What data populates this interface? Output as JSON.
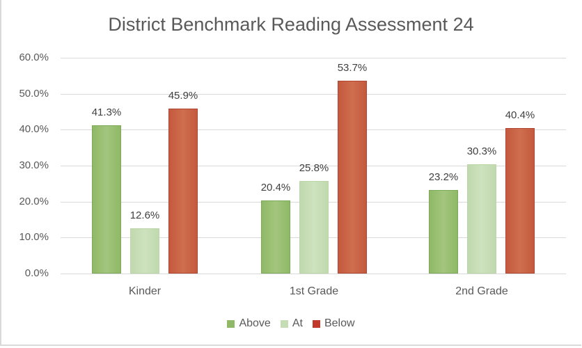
{
  "chart_data": {
    "type": "bar",
    "title": "District Benchmark Reading Assessment 24",
    "xlabel": "",
    "ylabel": "",
    "categories": [
      "Kinder",
      "1st Grade",
      "2nd Grade"
    ],
    "series": [
      {
        "name": "Above",
        "color": "#9bbf72",
        "values": [
          41.3,
          20.4,
          23.2
        ],
        "labels": [
          "41.3%",
          "20.4%",
          "23.2%"
        ]
      },
      {
        "name": "At",
        "color": "#c5dcb4",
        "values": [
          12.6,
          25.8,
          30.3
        ],
        "labels": [
          "12.6%",
          "25.8%",
          "30.3%"
        ]
      },
      {
        "name": "Below",
        "color": "#c9694a",
        "values": [
          45.9,
          53.7,
          40.4
        ],
        "labels": [
          "45.9%",
          "53.7%",
          "40.4%"
        ]
      }
    ],
    "ylim": [
      0,
      60
    ],
    "yticks": [
      "0.0%",
      "10.0%",
      "20.0%",
      "30.0%",
      "40.0%",
      "50.0%",
      "60.0%"
    ],
    "grid": true,
    "legend_position": "bottom"
  },
  "legend": {
    "items": [
      {
        "label": "Above",
        "color": "#8fb966"
      },
      {
        "label": "At",
        "color": "#c5dcb4"
      },
      {
        "label": "Below",
        "color": "#c0392b"
      }
    ]
  }
}
